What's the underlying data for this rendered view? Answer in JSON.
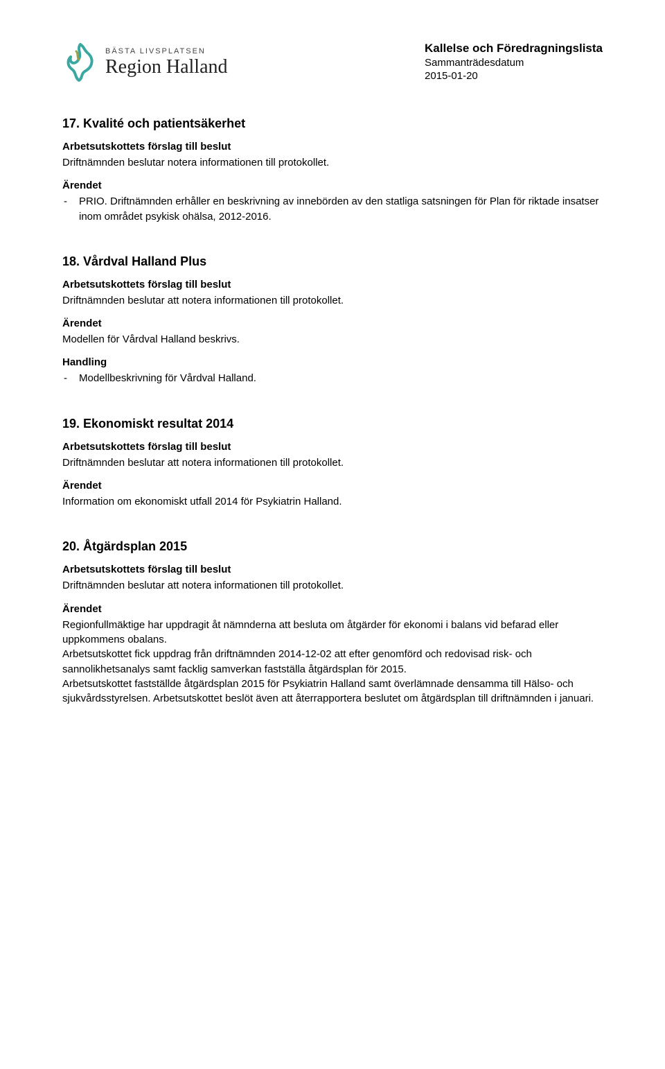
{
  "header": {
    "logo_tag": "BÄSTA LIVSPLATSEN",
    "logo_main": "Region Halland",
    "title": "Kallelse och Föredragningslista",
    "subtitle": "Sammanträdesdatum",
    "date": "2015-01-20",
    "logo_colors": {
      "teal": "#3aa8a0",
      "olive": "#9aa04a"
    }
  },
  "sections": [
    {
      "title": "17. Kvalité och patientsäkerhet",
      "blocks": [
        {
          "label": "Arbetsutskottets förslag till beslut",
          "text": "Driftnämnden beslutar notera informationen till protokollet."
        },
        {
          "label": "Ärendet",
          "items": [
            "PRIO. Driftnämnden erhåller en beskrivning av innebörden av den statliga satsningen för Plan för riktade insatser inom området psykisk ohälsa, 2012-2016."
          ]
        }
      ]
    },
    {
      "title": "18. Vårdval Halland Plus",
      "blocks": [
        {
          "label": "Arbetsutskottets förslag till beslut",
          "text": "Driftnämnden beslutar att notera informationen till protokollet."
        },
        {
          "label": "Ärendet",
          "text": "Modellen för Vårdval Halland beskrivs."
        },
        {
          "label": "Handling",
          "items": [
            "Modellbeskrivning för Vårdval Halland."
          ]
        }
      ]
    },
    {
      "title": "19. Ekonomiskt resultat 2014",
      "blocks": [
        {
          "label": "Arbetsutskottets förslag till beslut",
          "text": "Driftnämnden beslutar att notera informationen till protokollet."
        },
        {
          "label": "Ärendet",
          "text": "Information om ekonomiskt utfall 2014 för Psykiatrin Halland."
        }
      ]
    },
    {
      "title": "20. Åtgärdsplan 2015",
      "blocks": [
        {
          "label": "Arbetsutskottets förslag till beslut",
          "text": "Driftnämnden beslutar att notera informationen till protokollet."
        },
        {
          "label": "Ärendet",
          "paragraphs": [
            "Regionfullmäktige har uppdragit åt nämnderna att besluta om åtgärder för ekonomi i balans vid befarad eller uppkommens obalans.",
            "Arbetsutskottet fick uppdrag från driftnämnden 2014-12-02 att efter genomförd och redovisad risk- och sannolikhetsanalys samt facklig samverkan fastställa åtgärdsplan för 2015.",
            "Arbetsutskottet fastställde åtgärdsplan 2015 för Psykiatrin Halland samt överlämnade densamma till Hälso- och sjukvårdsstyrelsen. Arbetsutskottet beslöt även att återrapportera beslutet om åtgärdsplan till driftnämnden i januari."
          ]
        }
      ]
    }
  ]
}
